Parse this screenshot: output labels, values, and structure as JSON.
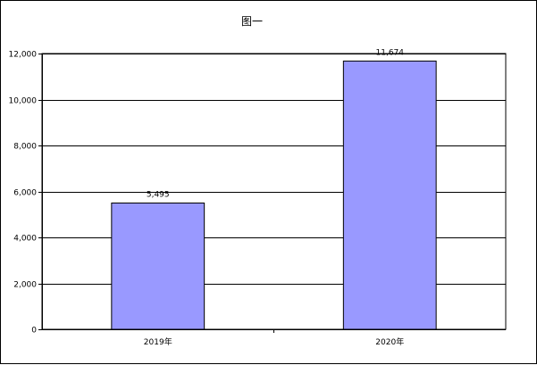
{
  "chart_data": {
    "type": "bar",
    "title": "图一",
    "categories": [
      "2019年",
      "2020年"
    ],
    "values": [
      5495,
      11674
    ],
    "data_labels": [
      "5,495",
      "11,674"
    ],
    "ylim": [
      0,
      12000
    ],
    "yticks": [
      0,
      2000,
      4000,
      6000,
      8000,
      10000,
      12000
    ],
    "ytick_labels": [
      "0",
      "2,000",
      "4,000",
      "6,000",
      "8,000",
      "10,000",
      "12,000"
    ],
    "xlabel": "",
    "ylabel": "",
    "grid": "horizontal",
    "legend": "none",
    "bar_color": "#9999ff",
    "bar_border_color": "#000000"
  }
}
